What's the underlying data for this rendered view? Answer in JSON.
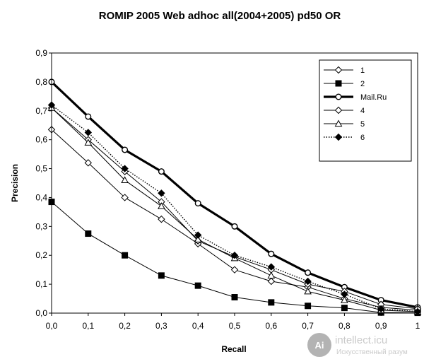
{
  "chart_data": {
    "type": "line",
    "title": "ROMIP 2005 Web adhoc all(2004+2005) pd50 OR",
    "xlabel": "Recall",
    "ylabel": "Precision",
    "x": [
      0.0,
      0.1,
      0.2,
      0.3,
      0.4,
      0.5,
      0.6,
      0.7,
      0.8,
      0.9,
      1.0
    ],
    "x_tick_labels": [
      "0,0",
      "0,1",
      "0,2",
      "0,3",
      "0,4",
      "0,5",
      "0,6",
      "0,7",
      "0,8",
      "0,9",
      "1"
    ],
    "y_ticks": [
      0,
      0.1,
      0.2,
      0.3,
      0.4,
      0.5,
      0.6,
      0.7,
      0.8,
      0.9
    ],
    "y_tick_labels": [
      "0,0",
      "0,1",
      "0,2",
      "0,3",
      "0,4",
      "0,5",
      "0,6",
      "0,7",
      "0,8",
      "0,9"
    ],
    "xlim": [
      0,
      1
    ],
    "ylim": [
      0,
      0.9
    ],
    "grid": false,
    "legend_position": "top-right",
    "series": [
      {
        "name": "1",
        "color": "#000000",
        "marker": "diamond-open",
        "line": "thin",
        "values": [
          0.635,
          0.52,
          0.4,
          0.325,
          0.24,
          0.15,
          0.11,
          0.09,
          0.05,
          0.02,
          0.01
        ]
      },
      {
        "name": "2",
        "color": "#000000",
        "marker": "square-filled",
        "line": "thin",
        "values": [
          0.385,
          0.275,
          0.2,
          0.13,
          0.095,
          0.055,
          0.037,
          0.025,
          0.018,
          0.002,
          0.001
        ]
      },
      {
        "name": "Mail.Ru",
        "color": "#000000",
        "marker": "circle-open",
        "line": "thick",
        "values": [
          0.8,
          0.68,
          0.565,
          0.49,
          0.38,
          0.3,
          0.205,
          0.14,
          0.09,
          0.045,
          0.02
        ]
      },
      {
        "name": "4",
        "color": "#000000",
        "marker": "diamond-open",
        "line": "thin",
        "values": [
          0.71,
          0.6,
          0.49,
          0.385,
          0.25,
          0.195,
          0.15,
          0.1,
          0.075,
          0.03,
          0.015
        ]
      },
      {
        "name": "5",
        "color": "#000000",
        "marker": "triangle-open",
        "line": "thin",
        "values": [
          0.71,
          0.59,
          0.46,
          0.37,
          0.255,
          0.19,
          0.13,
          0.075,
          0.045,
          0.01,
          0.005
        ]
      },
      {
        "name": "6",
        "color": "#000000",
        "marker": "diamond-filled",
        "line": "dotted",
        "values": [
          0.72,
          0.625,
          0.5,
          0.415,
          0.27,
          0.2,
          0.16,
          0.11,
          0.065,
          0.015,
          0.005
        ]
      }
    ]
  },
  "watermark": {
    "text": "intellect.icu",
    "subtext": "Искусственный разум",
    "logo_letter": "Ai",
    "color": "#b0b0b0"
  }
}
